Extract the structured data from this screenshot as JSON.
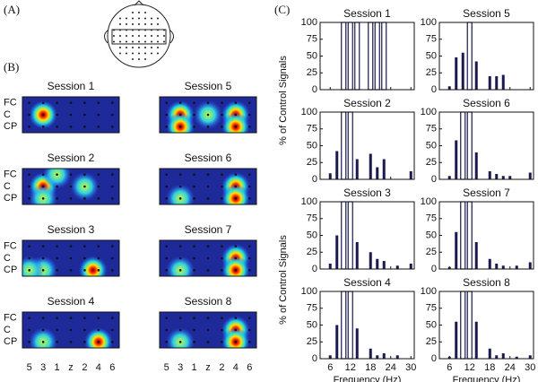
{
  "panel_a": {
    "label": "(A)"
  },
  "panel_b": {
    "label": "(B)",
    "sessions": [
      "Session 1",
      "Session 2",
      "Session 3",
      "Session 4",
      "Session 5",
      "Session 6",
      "Session 7",
      "Session 8"
    ],
    "rows": [
      "FC",
      "C",
      "CP"
    ],
    "columns": [
      "5",
      "3",
      "1",
      "z",
      "2",
      "4",
      "6"
    ]
  },
  "panel_c": {
    "label": "(C)",
    "ylabels": [
      "% of Control Signals",
      "% of Control Signals"
    ]
  },
  "chart_data": [
    {
      "type": "bar",
      "title": "Session 1",
      "x": [
        6,
        8,
        10,
        12,
        14,
        16,
        18,
        20,
        22,
        24,
        26,
        28,
        30
      ],
      "values": [
        0,
        0,
        100,
        100,
        100,
        0,
        100,
        100,
        100,
        0,
        0,
        0,
        0
      ],
      "outline": [
        2,
        3,
        4,
        6,
        7,
        8
      ],
      "color": "#1a1a4e",
      "xlim": [
        3,
        31
      ],
      "ylim": [
        0,
        100
      ],
      "xticks": [
        6,
        12,
        18,
        24,
        30
      ],
      "yticks": [
        0,
        25,
        50,
        75,
        100
      ]
    },
    {
      "type": "bar",
      "title": "Session 2",
      "x": [
        6,
        8,
        10,
        12,
        14,
        16,
        18,
        20,
        22,
        24,
        26,
        28,
        30
      ],
      "values": [
        9,
        42,
        100,
        100,
        30,
        0,
        38,
        18,
        30,
        0,
        0,
        0,
        12
      ],
      "outline": [
        2,
        3
      ],
      "color": "#1a1a4e",
      "xlim": [
        3,
        31
      ],
      "ylim": [
        0,
        100
      ],
      "xticks": [
        6,
        12,
        18,
        24,
        30
      ],
      "yticks": [
        0,
        25,
        50,
        75,
        100
      ]
    },
    {
      "type": "bar",
      "title": "Session 3",
      "x": [
        6,
        8,
        10,
        12,
        14,
        16,
        18,
        20,
        22,
        24,
        26,
        28,
        30
      ],
      "values": [
        8,
        50,
        100,
        100,
        40,
        0,
        25,
        15,
        12,
        0,
        5,
        0,
        8
      ],
      "outline": [
        2,
        3
      ],
      "color": "#1a1a4e",
      "xlim": [
        3,
        31
      ],
      "ylim": [
        0,
        100
      ],
      "xticks": [
        6,
        12,
        18,
        24,
        30
      ],
      "yticks": [
        0,
        25,
        50,
        75,
        100
      ]
    },
    {
      "type": "bar",
      "title": "Session 4",
      "x": [
        6,
        8,
        10,
        12,
        14,
        16,
        18,
        20,
        22,
        24,
        26,
        28,
        30
      ],
      "values": [
        5,
        50,
        100,
        100,
        45,
        0,
        15,
        5,
        8,
        0,
        5,
        0,
        0
      ],
      "outline": [
        2,
        3
      ],
      "color": "#1a1a4e",
      "xlim": [
        3,
        31
      ],
      "ylim": [
        0,
        100
      ],
      "xticks": [
        6,
        12,
        18,
        24,
        30
      ],
      "yticks": [
        0,
        25,
        50,
        75,
        100
      ],
      "xlabel": "Frequency (Hz)"
    },
    {
      "type": "bar",
      "title": "Session 5",
      "x": [
        6,
        8,
        10,
        12,
        14,
        16,
        18,
        20,
        22,
        24,
        26,
        28,
        30
      ],
      "values": [
        5,
        48,
        55,
        100,
        42,
        0,
        20,
        20,
        22,
        0,
        0,
        0,
        0
      ],
      "outline": [
        3
      ],
      "color": "#1a1a4e",
      "xlim": [
        3,
        31
      ],
      "ylim": [
        0,
        100
      ],
      "xticks": [
        6,
        12,
        18,
        24,
        30
      ],
      "yticks": [
        0,
        25,
        50,
        75,
        100
      ]
    },
    {
      "type": "bar",
      "title": "Session 6",
      "x": [
        6,
        8,
        10,
        12,
        14,
        16,
        18,
        20,
        22,
        24,
        26,
        28,
        30
      ],
      "values": [
        5,
        58,
        100,
        100,
        40,
        0,
        12,
        8,
        5,
        5,
        0,
        0,
        10
      ],
      "outline": [
        2,
        3
      ],
      "color": "#1a1a4e",
      "xlim": [
        3,
        31
      ],
      "ylim": [
        0,
        100
      ],
      "xticks": [
        6,
        12,
        18,
        24,
        30
      ],
      "yticks": [
        0,
        25,
        50,
        75,
        100
      ]
    },
    {
      "type": "bar",
      "title": "Session 7",
      "x": [
        6,
        8,
        10,
        12,
        14,
        16,
        18,
        20,
        22,
        24,
        26,
        28,
        30
      ],
      "values": [
        3,
        55,
        100,
        100,
        40,
        0,
        15,
        8,
        5,
        0,
        5,
        0,
        10
      ],
      "outline": [
        2,
        3
      ],
      "color": "#1a1a4e",
      "xlim": [
        3,
        31
      ],
      "ylim": [
        0,
        100
      ],
      "xticks": [
        6,
        12,
        18,
        24,
        30
      ],
      "yticks": [
        0,
        25,
        50,
        75,
        100
      ]
    },
    {
      "type": "bar",
      "title": "Session 8",
      "x": [
        6,
        8,
        10,
        12,
        14,
        16,
        18,
        20,
        22,
        24,
        26,
        28,
        30
      ],
      "values": [
        3,
        55,
        100,
        100,
        55,
        0,
        15,
        5,
        8,
        0,
        3,
        0,
        5
      ],
      "outline": [
        2,
        3
      ],
      "color": "#1a1a4e",
      "xlim": [
        3,
        31
      ],
      "ylim": [
        0,
        100
      ],
      "xticks": [
        6,
        12,
        18,
        24,
        30
      ],
      "yticks": [
        0,
        25,
        50,
        75,
        100
      ],
      "xlabel": "Frequency (Hz)"
    }
  ]
}
